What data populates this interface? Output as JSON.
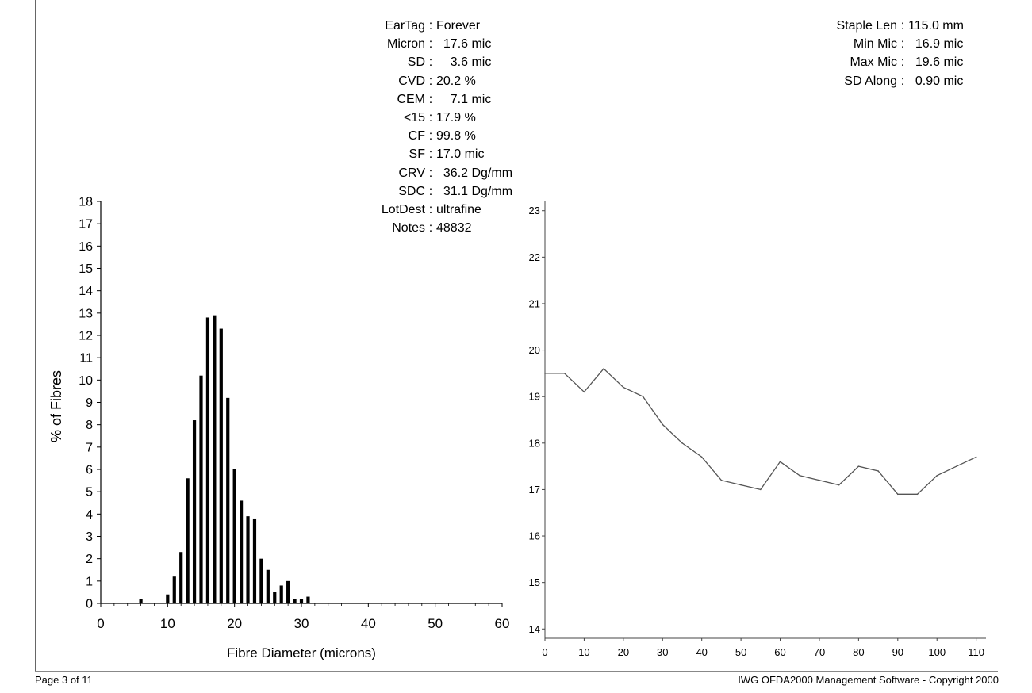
{
  "stats_center": [
    {
      "key": "EarTag",
      "value": "Forever"
    },
    {
      "key": "Micron",
      "value": "  17.6 mic"
    },
    {
      "key": "SD",
      "value": "    3.6 mic"
    },
    {
      "key": "CVD",
      "value": "20.2 %"
    },
    {
      "key": "CEM",
      "value": "    7.1 mic"
    },
    {
      "key": "<15",
      "value": "17.9 %"
    },
    {
      "key": "CF",
      "value": "99.8 %"
    },
    {
      "key": "SF",
      "value": "17.0 mic"
    },
    {
      "key": "CRV",
      "value": "  36.2 Dg/mm"
    },
    {
      "key": "SDC",
      "value": "  31.1 Dg/mm"
    },
    {
      "key": "LotDest",
      "value": "ultrafine"
    },
    {
      "key": "Notes",
      "value": "48832"
    }
  ],
  "stats_right": [
    {
      "key": "Staple Len",
      "value": "115.0 mm"
    },
    {
      "key": "Min Mic",
      "value": "  16.9 mic"
    },
    {
      "key": "Max Mic",
      "value": "  19.6 mic"
    },
    {
      "key": "SD Along",
      "value": "  0.90 mic"
    }
  ],
  "footer": {
    "left": "Page 3 of 11",
    "right": "IWG OFDA2000 Management Software - Copyright 2000"
  },
  "colors": {
    "ink": "#000000",
    "line": "#555555",
    "axis": "#444444"
  },
  "chart_data": [
    {
      "type": "bar",
      "xlabel": "Fibre Diameter (microns)",
      "ylabel": "% of Fibres",
      "xlim": [
        0,
        60
      ],
      "ylim": [
        0,
        18
      ],
      "xticks": [
        0,
        10,
        20,
        30,
        40,
        50,
        60
      ],
      "yticks": [
        0,
        1,
        2,
        3,
        4,
        5,
        6,
        7,
        8,
        9,
        10,
        11,
        12,
        13,
        14,
        15,
        16,
        17,
        18
      ],
      "grid": false,
      "x": [
        6,
        10,
        11,
        12,
        13,
        14,
        15,
        16,
        17,
        18,
        19,
        20,
        21,
        22,
        23,
        24,
        25,
        26,
        27,
        28,
        29,
        30,
        31
      ],
      "values": [
        0.2,
        0.4,
        1.2,
        2.3,
        5.6,
        8.2,
        10.2,
        12.8,
        12.9,
        12.3,
        9.2,
        6.0,
        4.6,
        3.9,
        3.8,
        2.0,
        1.5,
        0.5,
        0.8,
        1.0,
        0.2,
        0.2,
        0.3
      ]
    },
    {
      "type": "line",
      "xlim": [
        0,
        110
      ],
      "ylim": [
        13.8,
        23.2
      ],
      "xticks": [
        0,
        10,
        20,
        30,
        40,
        50,
        60,
        70,
        80,
        90,
        100,
        110
      ],
      "yticks": [
        14,
        15,
        16,
        17,
        18,
        19,
        20,
        21,
        22,
        23
      ],
      "grid": false,
      "x": [
        0,
        5,
        10,
        15,
        20,
        25,
        30,
        35,
        40,
        45,
        50,
        55,
        60,
        65,
        70,
        75,
        80,
        85,
        90,
        95,
        100,
        105,
        110
      ],
      "values": [
        19.5,
        19.5,
        19.1,
        19.6,
        19.2,
        19.0,
        18.4,
        18.0,
        17.7,
        17.2,
        17.1,
        17.0,
        17.6,
        17.3,
        17.2,
        17.1,
        17.5,
        17.4,
        16.9,
        16.9,
        17.3,
        17.5,
        17.7
      ]
    }
  ]
}
